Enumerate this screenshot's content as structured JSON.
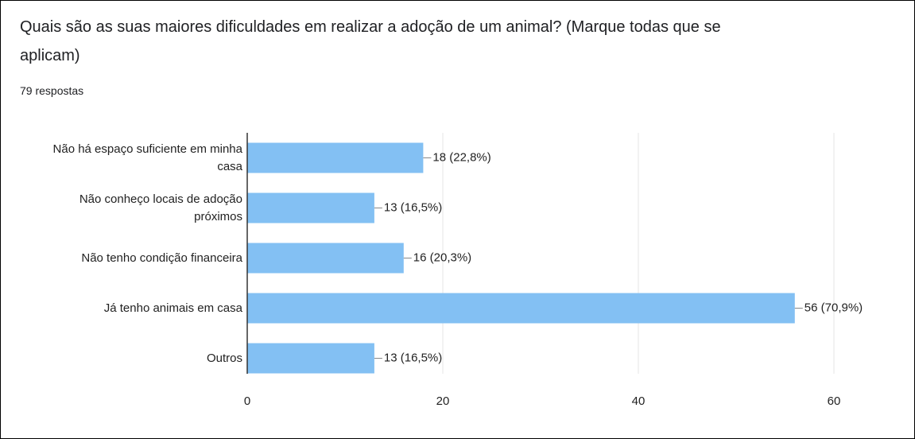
{
  "chart_data": {
    "type": "bar",
    "orientation": "horizontal",
    "title": "Quais são as suas maiores dificuldades em realizar a adoção de um animal? (Marque todas que se aplicam)",
    "subtitle": "79 respostas",
    "categories": [
      "Não há espaço suficiente em minha casa",
      "Não conheço locais de adoção próximos",
      "Não tenho condição financeira",
      "Já tenho animais em casa",
      "Outros"
    ],
    "values": [
      18,
      13,
      16,
      56,
      13
    ],
    "value_labels": [
      "18 (22,8%)",
      "13 (16,5%)",
      "16 (20,3%)",
      "56 (70,9%)",
      "13 (16,5%)"
    ],
    "color": "#83c0f3",
    "xlim": [
      0,
      60
    ],
    "xticks": [
      0,
      20,
      40,
      60
    ],
    "grid": true
  }
}
